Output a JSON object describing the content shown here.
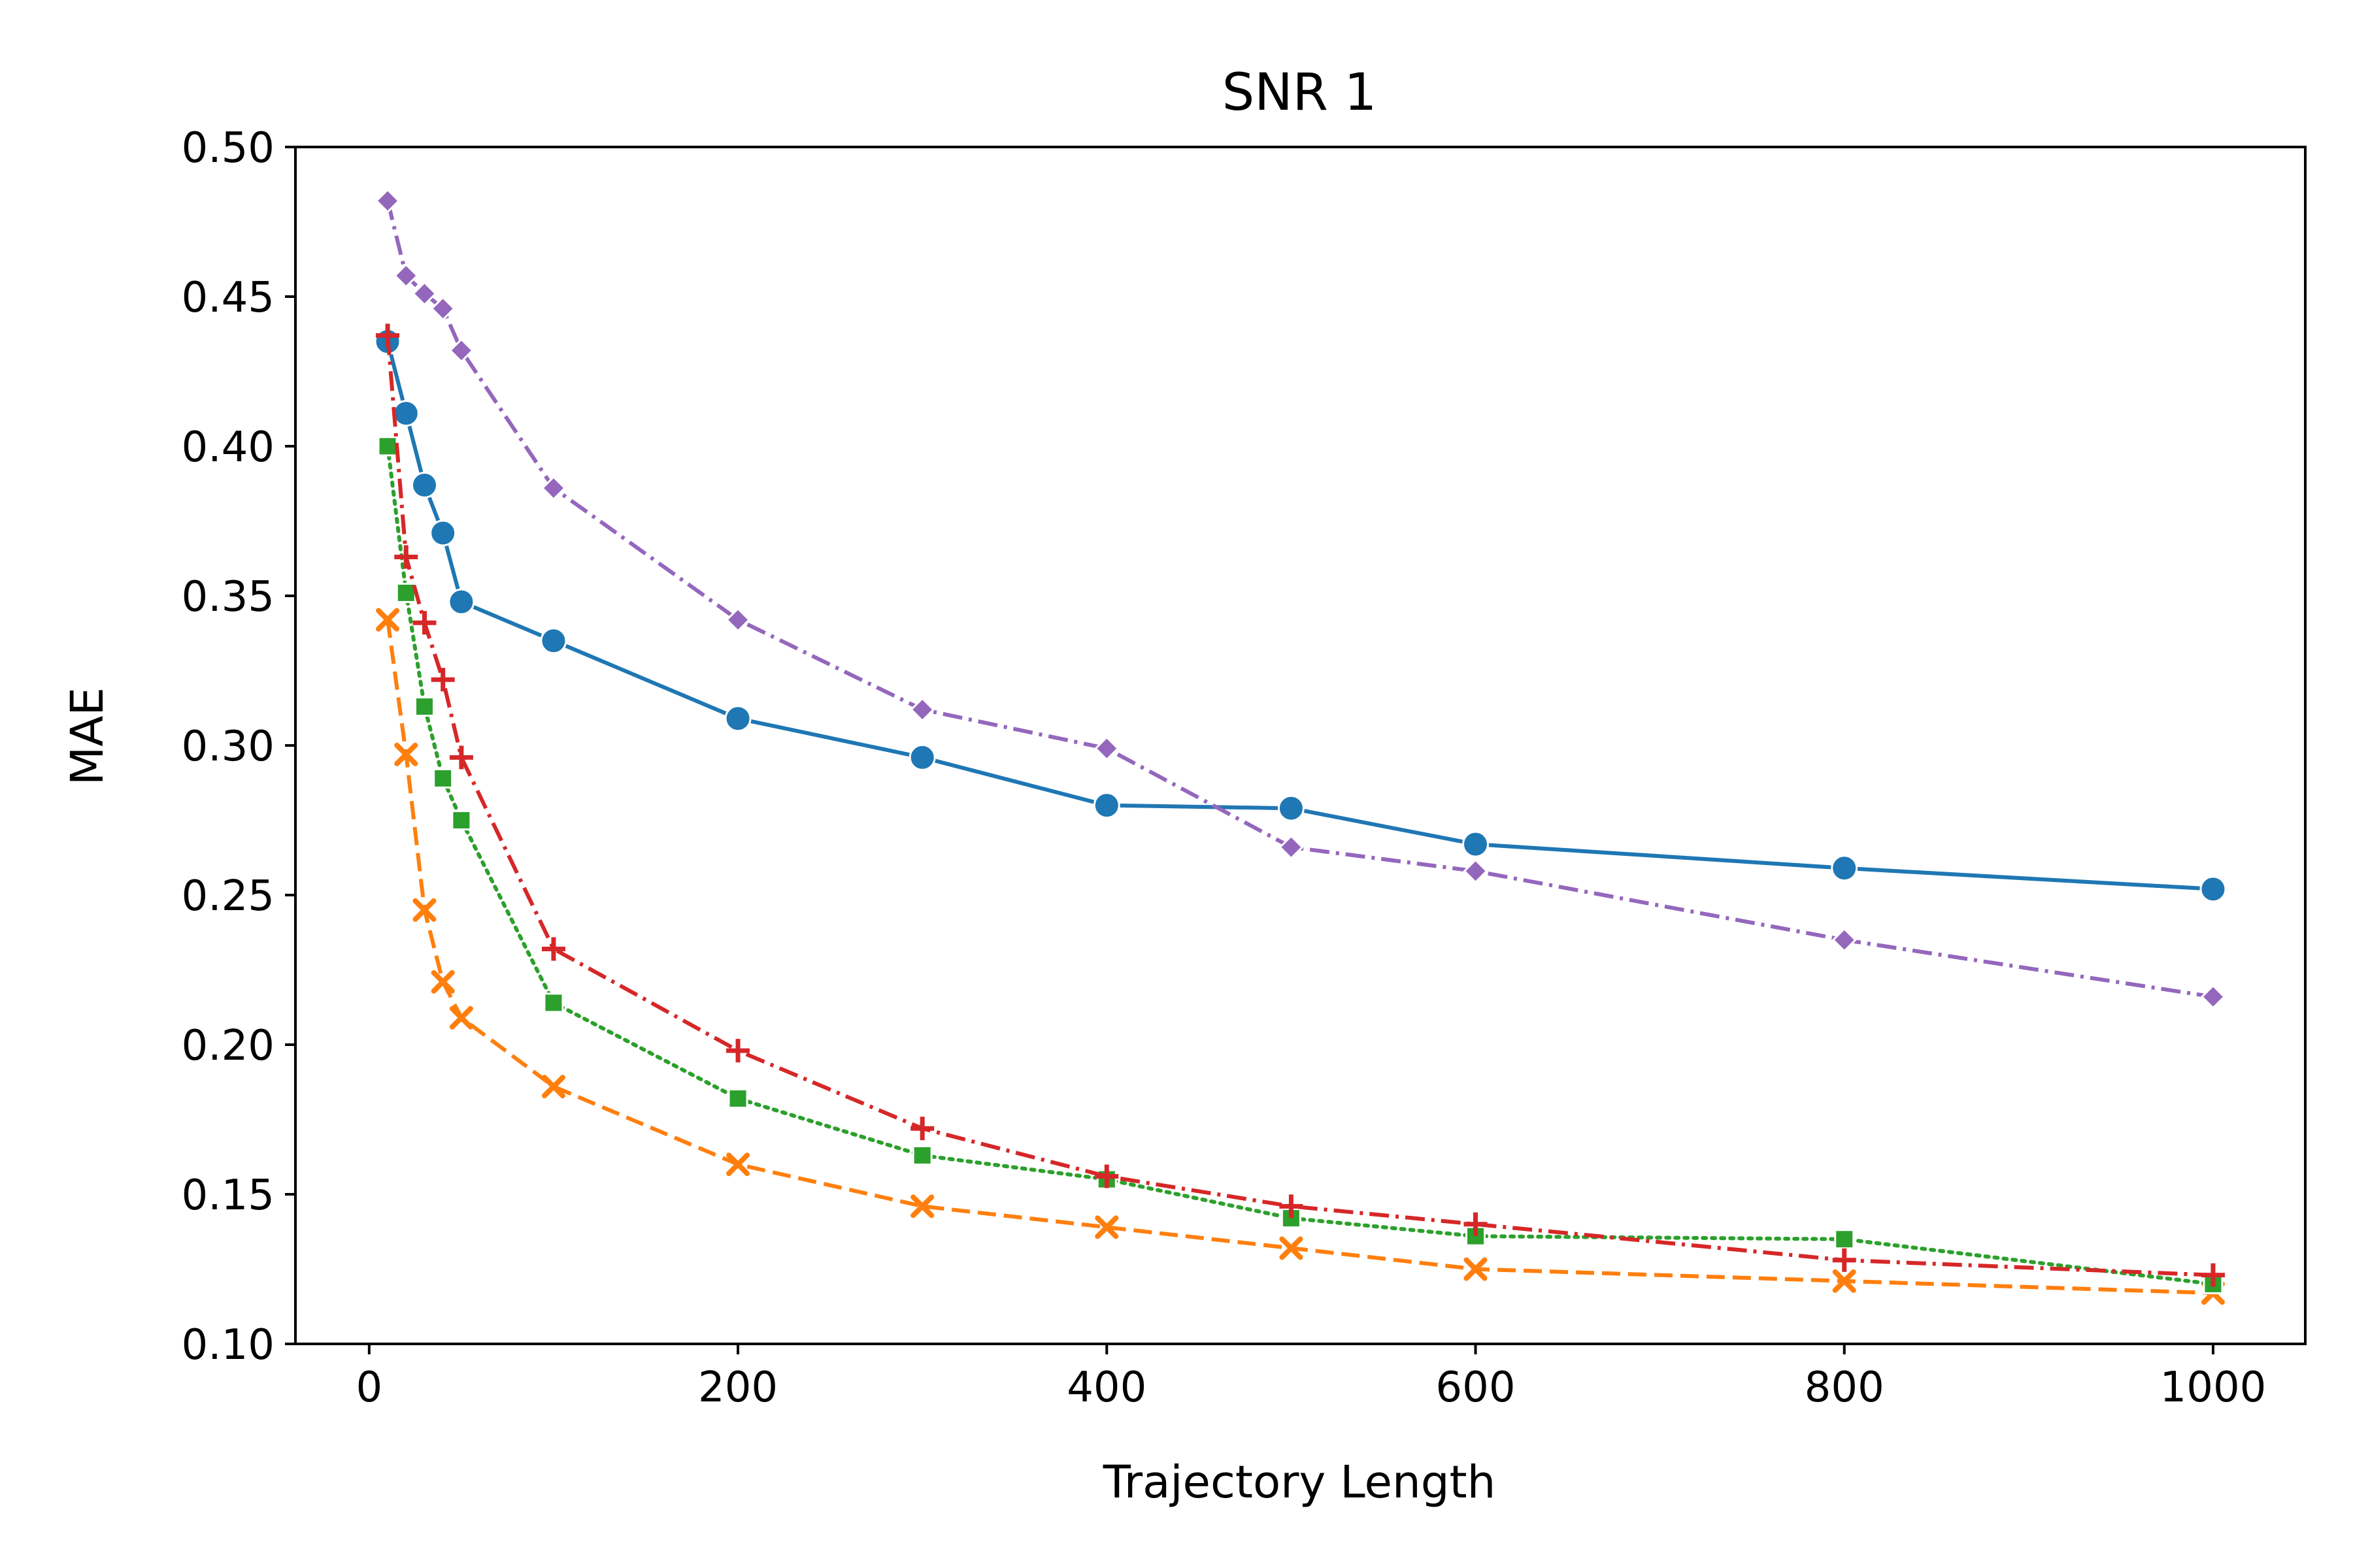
{
  "chart_data": {
    "type": "line",
    "title": "SNR 1",
    "xlabel": "Trajectory Length",
    "ylabel": "MAE",
    "xlim": [
      -40,
      1050
    ],
    "ylim": [
      0.1,
      0.5
    ],
    "xticks": [
      "0",
      "200",
      "400",
      "600",
      "800",
      "1000"
    ],
    "yticks": [
      "0.10",
      "0.15",
      "0.20",
      "0.25",
      "0.30",
      "0.35",
      "0.40",
      "0.45",
      "0.50"
    ],
    "grid": false,
    "legend": "none",
    "x": [
      10,
      20,
      30,
      40,
      50,
      100,
      200,
      300,
      400,
      500,
      600,
      800,
      1000
    ],
    "series": [
      {
        "color": "#1f77b4",
        "linestyle": "solid",
        "marker": "circle",
        "values": [
          0.435,
          0.411,
          0.387,
          0.371,
          0.348,
          0.335,
          0.309,
          0.296,
          0.28,
          0.279,
          0.267,
          0.259,
          0.252
        ]
      },
      {
        "color": "#ff7f0e",
        "linestyle": "dashed",
        "marker": "x",
        "values": [
          0.342,
          0.297,
          0.245,
          0.221,
          0.209,
          0.186,
          0.16,
          0.146,
          0.139,
          0.132,
          0.125,
          0.121,
          0.117
        ]
      },
      {
        "color": "#2ca02c",
        "linestyle": "dotted",
        "marker": "square",
        "values": [
          0.4,
          0.351,
          0.313,
          0.289,
          0.275,
          0.214,
          0.182,
          0.163,
          0.155,
          0.142,
          0.136,
          0.135,
          0.12
        ]
      },
      {
        "color": "#d62728",
        "linestyle": "dashdot",
        "marker": "plus",
        "values": [
          0.437,
          0.363,
          0.341,
          0.322,
          0.296,
          0.232,
          0.198,
          0.172,
          0.156,
          0.146,
          0.14,
          0.128,
          0.123
        ]
      },
      {
        "color": "#9467bd",
        "linestyle": "dashdot",
        "marker": "diamond",
        "values": [
          0.482,
          0.457,
          0.451,
          0.446,
          0.432,
          0.386,
          0.342,
          0.312,
          0.299,
          0.266,
          0.258,
          0.235,
          0.216
        ]
      }
    ]
  }
}
